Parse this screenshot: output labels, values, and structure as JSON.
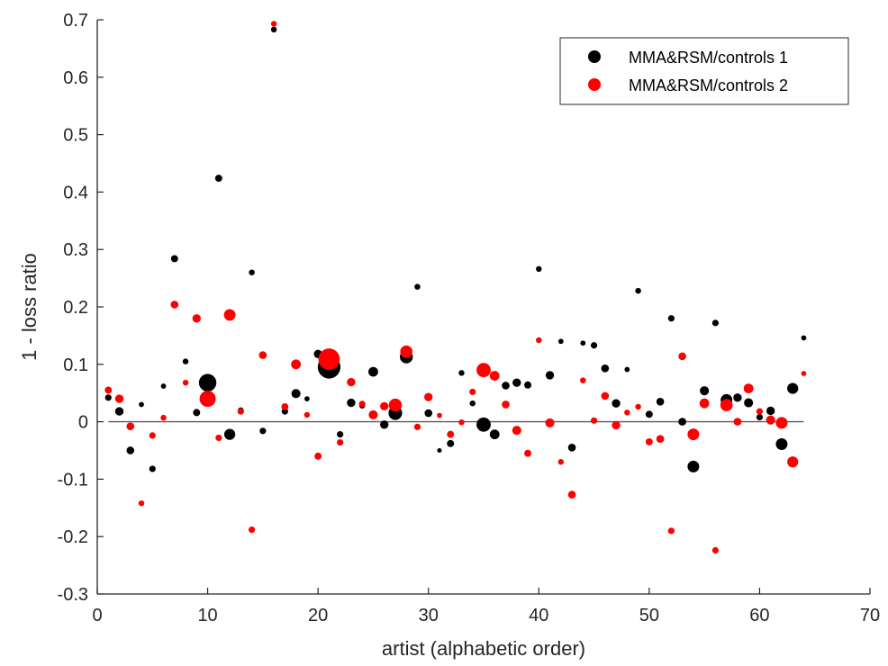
{
  "chart_data": {
    "type": "scatter",
    "title": "",
    "xlabel": "artist (alphabetic order)",
    "ylabel": "1 - loss ratio",
    "xlim": [
      0,
      70
    ],
    "ylim": [
      -0.3,
      0.7
    ],
    "xticks": [
      0,
      10,
      20,
      30,
      40,
      50,
      60,
      70
    ],
    "yticks": [
      -0.3,
      -0.2,
      -0.1,
      0,
      0.1,
      0.2,
      0.3,
      0.4,
      0.5,
      0.6,
      0.7
    ],
    "xtick_labels": [
      "0",
      "10",
      "20",
      "30",
      "40",
      "50",
      "60",
      "70"
    ],
    "ytick_labels": [
      "-0.3",
      "-0.2",
      "-0.1",
      "0",
      "0.1",
      "0.2",
      "0.3",
      "0.4",
      "0.5",
      "0.6",
      "0.7"
    ],
    "grid": false,
    "legend_position": "top-right",
    "reference_line": {
      "y": 0,
      "x_range": [
        1,
        64
      ]
    },
    "series": [
      {
        "name": "MMA&RSM/controls 1",
        "color": "#000000",
        "points": [
          [
            1,
            0.042,
            1
          ],
          [
            2,
            0.018,
            1.3
          ],
          [
            3,
            -0.05,
            1.2
          ],
          [
            4,
            0.03,
            0.8
          ],
          [
            5,
            -0.082,
            1
          ],
          [
            6,
            0.062,
            0.8
          ],
          [
            7,
            0.284,
            1.1
          ],
          [
            8,
            0.105,
            0.9
          ],
          [
            9,
            0.016,
            1.1
          ],
          [
            10,
            0.068,
            2.7
          ],
          [
            11,
            0.424,
            1.1
          ],
          [
            12,
            -0.022,
            1.7
          ],
          [
            13,
            0.02,
            0.9
          ],
          [
            14,
            0.26,
            0.9
          ],
          [
            15,
            -0.016,
            1
          ],
          [
            16,
            0.683,
            0.9
          ],
          [
            17,
            0.018,
            1
          ],
          [
            18,
            0.049,
            1.4
          ],
          [
            19,
            0.04,
            0.8
          ],
          [
            20,
            0.118,
            1.3
          ],
          [
            21,
            0.095,
            3.5
          ],
          [
            22,
            -0.022,
            1
          ],
          [
            23,
            0.033,
            1.3
          ],
          [
            24,
            0.028,
            0.9
          ],
          [
            25,
            0.087,
            1.5
          ],
          [
            26,
            -0.005,
            1.3
          ],
          [
            27,
            0.015,
            2.1
          ],
          [
            28,
            0.113,
            2
          ],
          [
            29,
            0.235,
            0.9
          ],
          [
            30,
            0.015,
            1.2
          ],
          [
            31,
            -0.05,
            0.7
          ],
          [
            32,
            -0.038,
            1.1
          ],
          [
            33,
            0.085,
            0.9
          ],
          [
            34,
            0.032,
            0.9
          ],
          [
            35,
            -0.005,
            2.2
          ],
          [
            36,
            -0.022,
            1.5
          ],
          [
            37,
            0.063,
            1.2
          ],
          [
            38,
            0.068,
            1.3
          ],
          [
            39,
            0.064,
            1.1
          ],
          [
            40,
            0.266,
            0.9
          ],
          [
            41,
            0.081,
            1.3
          ],
          [
            42,
            0.14,
            0.8
          ],
          [
            43,
            -0.045,
            1.2
          ],
          [
            44,
            0.137,
            0.8
          ],
          [
            45,
            0.133,
            1
          ],
          [
            46,
            0.093,
            1.2
          ],
          [
            47,
            0.032,
            1.3
          ],
          [
            48,
            0.091,
            0.8
          ],
          [
            49,
            0.228,
            0.9
          ],
          [
            50,
            0.013,
            1.1
          ],
          [
            51,
            0.035,
            1.2
          ],
          [
            52,
            0.18,
            1
          ],
          [
            53,
            0.0,
            1.2
          ],
          [
            54,
            -0.078,
            1.8
          ],
          [
            55,
            0.054,
            1.4
          ],
          [
            56,
            0.172,
            1
          ],
          [
            57,
            0.038,
            1.8
          ],
          [
            58,
            0.042,
            1.3
          ],
          [
            59,
            0.033,
            1.4
          ],
          [
            60,
            0.008,
            1
          ],
          [
            61,
            0.019,
            1.3
          ],
          [
            62,
            -0.039,
            1.8
          ],
          [
            63,
            0.058,
            1.7
          ],
          [
            64,
            0.146,
            0.8
          ]
        ]
      },
      {
        "name": "MMA&RSM/controls 2",
        "color": "#ff0000",
        "points": [
          [
            1,
            0.055,
            1.1
          ],
          [
            2,
            0.04,
            1.3
          ],
          [
            3,
            -0.008,
            1.2
          ],
          [
            4,
            -0.142,
            0.9
          ],
          [
            5,
            -0.024,
            1
          ],
          [
            6,
            0.007,
            0.9
          ],
          [
            7,
            0.204,
            1.2
          ],
          [
            8,
            0.068,
            0.9
          ],
          [
            9,
            0.18,
            1.3
          ],
          [
            10,
            0.04,
            2.5
          ],
          [
            11,
            -0.028,
            1
          ],
          [
            12,
            0.186,
            1.8
          ],
          [
            13,
            0.018,
            1
          ],
          [
            14,
            -0.188,
            1
          ],
          [
            15,
            0.116,
            1.2
          ],
          [
            16,
            0.693,
            0.9
          ],
          [
            17,
            0.026,
            1.1
          ],
          [
            18,
            0.1,
            1.5
          ],
          [
            19,
            0.012,
            0.9
          ],
          [
            20,
            -0.06,
            1.1
          ],
          [
            21,
            0.109,
            3.3
          ],
          [
            22,
            -0.036,
            1
          ],
          [
            23,
            0.069,
            1.3
          ],
          [
            24,
            0.031,
            1
          ],
          [
            25,
            0.012,
            1.4
          ],
          [
            26,
            0.027,
            1.3
          ],
          [
            27,
            0.029,
            2
          ],
          [
            28,
            0.122,
            1.9
          ],
          [
            29,
            -0.009,
            1
          ],
          [
            30,
            0.043,
            1.3
          ],
          [
            31,
            0.011,
            0.8
          ],
          [
            32,
            -0.022,
            1.1
          ],
          [
            33,
            -0.001,
            0.9
          ],
          [
            34,
            0.052,
            1
          ],
          [
            35,
            0.09,
            2.2
          ],
          [
            36,
            0.08,
            1.5
          ],
          [
            37,
            0.03,
            1.2
          ],
          [
            38,
            -0.015,
            1.4
          ],
          [
            39,
            -0.055,
            1.1
          ],
          [
            40,
            0.142,
            0.9
          ],
          [
            41,
            -0.002,
            1.4
          ],
          [
            42,
            -0.07,
            0.9
          ],
          [
            43,
            -0.127,
            1.2
          ],
          [
            44,
            0.072,
            0.9
          ],
          [
            45,
            0.002,
            1
          ],
          [
            46,
            0.045,
            1.2
          ],
          [
            47,
            -0.006,
            1.3
          ],
          [
            48,
            0.016,
            0.9
          ],
          [
            49,
            0.026,
            0.9
          ],
          [
            50,
            -0.035,
            1.1
          ],
          [
            51,
            -0.03,
            1.2
          ],
          [
            52,
            -0.19,
            1
          ],
          [
            53,
            0.114,
            1.2
          ],
          [
            54,
            -0.022,
            1.8
          ],
          [
            55,
            0.032,
            1.5
          ],
          [
            56,
            -0.224,
            1
          ],
          [
            57,
            0.029,
            1.9
          ],
          [
            58,
            0.0,
            1.2
          ],
          [
            59,
            0.058,
            1.5
          ],
          [
            60,
            0.018,
            1
          ],
          [
            61,
            0.003,
            1.4
          ],
          [
            62,
            -0.002,
            1.8
          ],
          [
            63,
            -0.07,
            1.7
          ],
          [
            64,
            0.084,
            0.8
          ]
        ]
      }
    ]
  }
}
